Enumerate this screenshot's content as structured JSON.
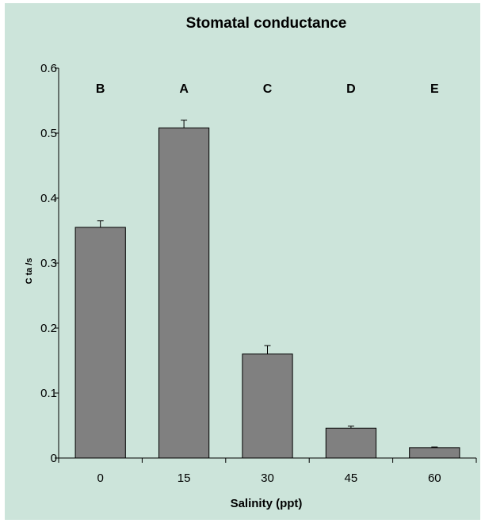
{
  "chart_data": {
    "type": "bar",
    "title": "Stomatal conductance",
    "xlabel": "Salinity (ppt)",
    "ylabel": "C ta /s",
    "categories": [
      "0",
      "15",
      "30",
      "45",
      "60"
    ],
    "values": [
      0.355,
      0.508,
      0.16,
      0.046,
      0.016
    ],
    "error": [
      0.01,
      0.012,
      0.013,
      0.003,
      0.001
    ],
    "group_letters": [
      "B",
      "A",
      "C",
      "D",
      "E"
    ],
    "ylim": [
      0,
      0.6
    ],
    "yticks": [
      "0",
      "0.1",
      "0.2",
      "0.3",
      "0.4",
      "0.5",
      "0.6"
    ],
    "yticks_values": [
      0,
      0.1,
      0.2,
      0.3,
      0.4,
      0.5,
      0.6
    ],
    "grid": false,
    "bar_color": "#808080",
    "background_color": "#cce4da"
  }
}
